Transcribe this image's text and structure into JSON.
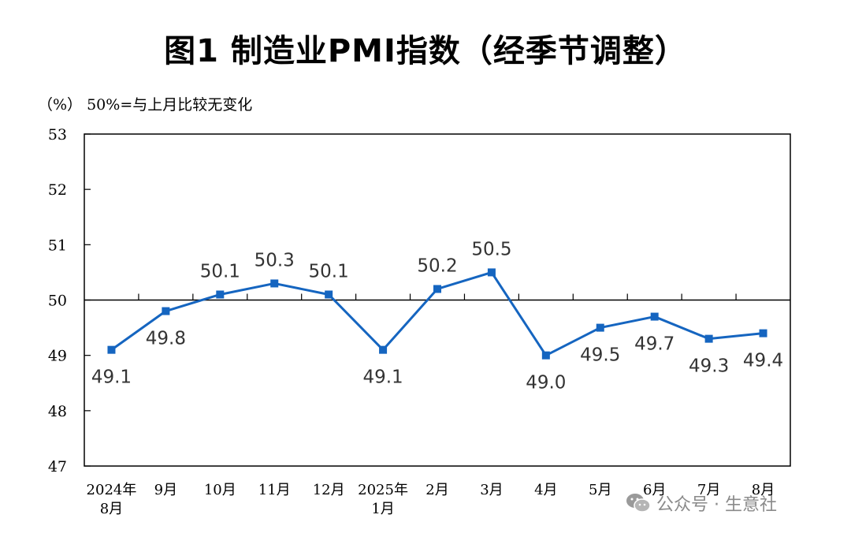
{
  "title": "图1  制造业PMI指数（经季节调整）",
  "note": "（%）  50%=与上月比较无变化",
  "watermark": {
    "text": "公众号 · 生意社",
    "icon": "wechat-icon"
  },
  "colors": {
    "series": "#1565c0",
    "axis": "#000000",
    "label": "#333333"
  },
  "chart_data": {
    "type": "line",
    "title": "图1  制造业PMI指数（经季节调整）",
    "ylabel": "（%）",
    "annotation": "50%=与上月比较无变化",
    "categories": [
      [
        "2024年",
        "8月"
      ],
      [
        "9月"
      ],
      [
        "10月"
      ],
      [
        "11月"
      ],
      [
        "12月"
      ],
      [
        "2025年",
        "1月"
      ],
      [
        "2月"
      ],
      [
        "3月"
      ],
      [
        "4月"
      ],
      [
        "5月"
      ],
      [
        "6月"
      ],
      [
        "7月"
      ],
      [
        "8月"
      ]
    ],
    "yticks": [
      "47",
      "48",
      "49",
      "50",
      "51",
      "52",
      "53"
    ],
    "ylim": [
      47,
      53
    ],
    "reference_line": 50,
    "grid": false,
    "marker": "square",
    "series": [
      {
        "values": [
          49.1,
          49.8,
          50.1,
          50.3,
          50.1,
          49.1,
          50.2,
          50.5,
          49.0,
          49.5,
          49.7,
          49.3,
          49.4
        ],
        "data_labels": [
          "49.1",
          "49.8",
          "50.1",
          "50.3",
          "50.1",
          "49.1",
          "50.2",
          "50.5",
          "49.0",
          "49.5",
          "49.7",
          "49.3",
          "49.4"
        ],
        "label_position": [
          "below",
          "below",
          "above",
          "above",
          "above",
          "below",
          "above",
          "above",
          "below",
          "below",
          "below",
          "below",
          "below"
        ]
      }
    ]
  }
}
